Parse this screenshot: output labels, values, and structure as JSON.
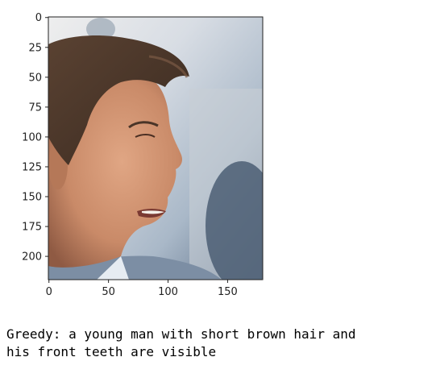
{
  "chart_data": {
    "type": "image",
    "x_ticks": [
      0,
      50,
      100,
      150
    ],
    "y_ticks": [
      0,
      25,
      50,
      75,
      100,
      125,
      150,
      175,
      200
    ],
    "xlim": [
      -0.5,
      179.5
    ],
    "ylim": [
      219.5,
      -0.5
    ],
    "grid": false
  },
  "caption": {
    "text": "Greedy: a young man with short brown hair and\nhis front teeth are visible"
  },
  "colors": {
    "axis": "#222222",
    "background": "#ffffff",
    "hair": "#4a3528",
    "skin": "#c98a68",
    "backdrop": "#b8c4d0"
  }
}
